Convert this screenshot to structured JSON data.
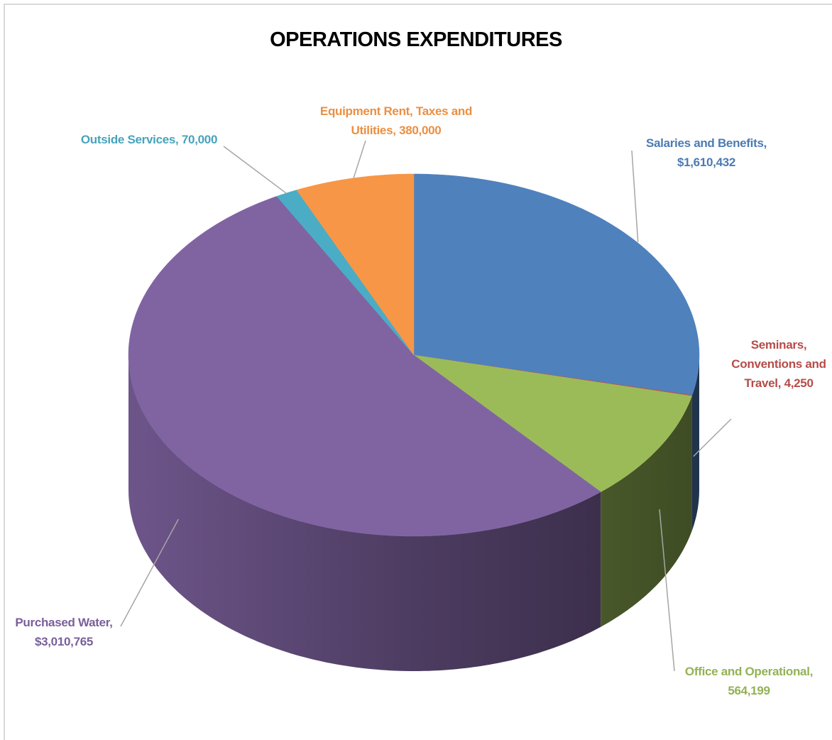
{
  "chart_data": {
    "type": "pie3d",
    "title": "OPERATIONS EXPENDITURES",
    "categories": [
      "Salaries and Benefits,",
      "Seminars, Conventions and Travel,",
      "Office and Operational,",
      "Purchased Water,",
      "Outside Services,",
      "Equipment Rent, Taxes and Utilities,"
    ],
    "values": [
      1610432,
      4250,
      564199,
      3010765,
      70000,
      380000
    ],
    "value_labels": [
      "$1,610,432",
      "4,250",
      "564,199",
      "$3,010,765",
      "70,000",
      "380,000"
    ],
    "colors": [
      "#4f81bd",
      "#c0504d",
      "#9bbb59",
      "#8064a2",
      "#4bacc6",
      "#f79646"
    ]
  }
}
